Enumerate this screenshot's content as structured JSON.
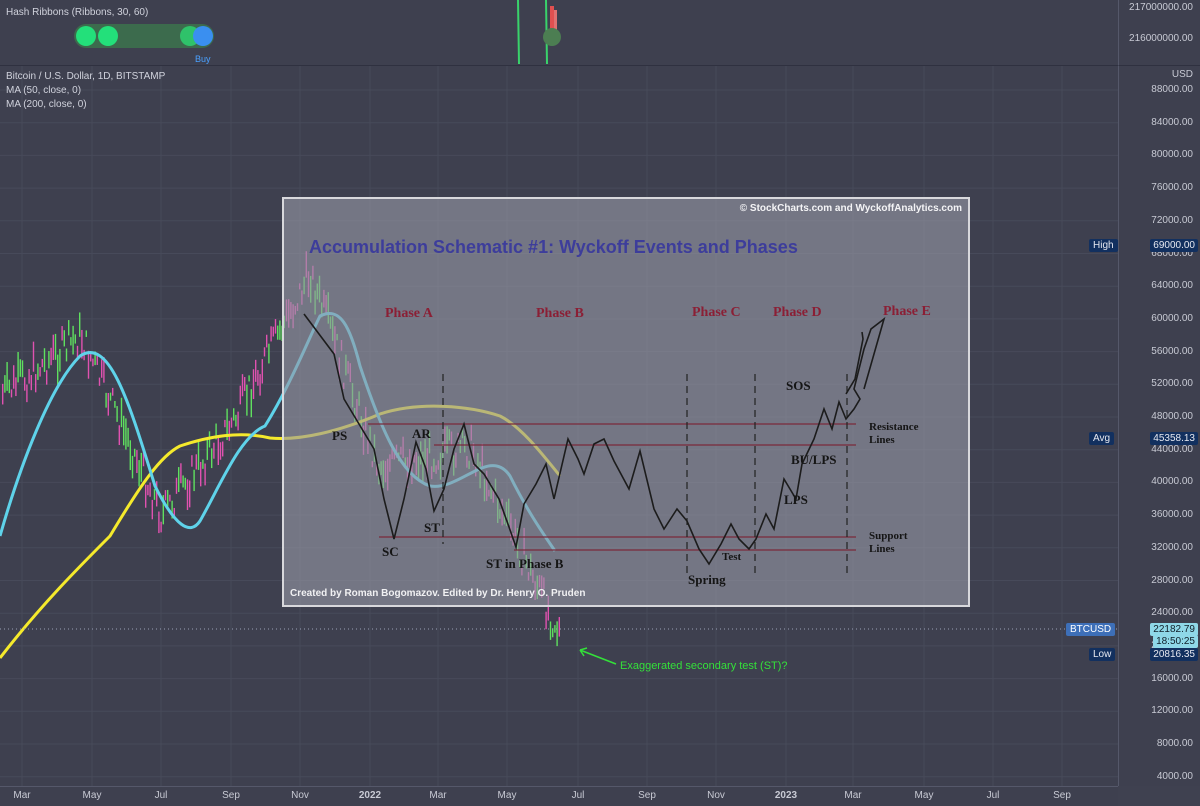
{
  "hash_ribbons": {
    "legend": "Hash Ribbons (Ribbons, 30, 60)",
    "signal_label": "Buy",
    "axis_ticks": [
      "217000000.00",
      "216000000.00"
    ]
  },
  "main": {
    "legend_symbol": "Bitcoin / U.S. Dollar, 1D, BITSTAMP",
    "legend_ma50": "MA (50, close, 0)",
    "legend_ma200": "MA (200, close, 0)",
    "currency": "USD",
    "price_ticks": [
      "88000.00",
      "84000.00",
      "80000.00",
      "76000.00",
      "72000.00",
      "68000.00",
      "64000.00",
      "60000.00",
      "56000.00",
      "52000.00",
      "48000.00",
      "44000.00",
      "40000.00",
      "36000.00",
      "32000.00",
      "28000.00",
      "24000.00",
      "20000.00",
      "16000.00",
      "12000.00",
      "8000.00",
      "4000.00"
    ],
    "tags": {
      "high_label": "High",
      "high_value": "69000.00",
      "avg_label": "Avg",
      "avg_value": "45358.13",
      "symbol_label": "BTCUSD",
      "last_value": "22182.79",
      "countdown": "18:50:25",
      "low_label": "Low",
      "low_value": "20816.35"
    },
    "colors": {
      "ma50": "#5fd3ea",
      "ma200": "#f5ea2c",
      "up_candle": "#5fe05f",
      "down_candle": "#e052b0",
      "annotation": "#34e03a",
      "phase_text": "#8b1f35",
      "title_text": "#3d3d9b"
    }
  },
  "time_axis": [
    "Mar",
    "May",
    "Jul",
    "Sep",
    "Nov",
    "2022",
    "Mar",
    "May",
    "Jul",
    "Sep",
    "Nov",
    "2023",
    "Mar",
    "May",
    "Jul",
    "Sep"
  ],
  "schematic": {
    "copyright": "© StockCharts.com and WyckoffAnalytics.com",
    "title": "Accumulation Schematic #1: Wyckoff Events and Phases",
    "credit": "Created by Roman Bogomazov. Edited by Dr. Henry O. Pruden",
    "phases": [
      "Phase A",
      "Phase B",
      "Phase C",
      "Phase D",
      "Phase E"
    ],
    "events": {
      "ps": "PS",
      "sc": "SC",
      "ar": "AR",
      "st": "ST",
      "st_b": "ST in Phase B",
      "spring": "Spring",
      "test": "Test",
      "lps": "LPS",
      "sos": "SOS",
      "bu_lps": "BU/LPS"
    },
    "resistance": [
      "Resistance",
      "Lines"
    ],
    "support": [
      "Support",
      "Lines"
    ]
  },
  "annotation": "Exaggerated secondary test (ST)?"
}
